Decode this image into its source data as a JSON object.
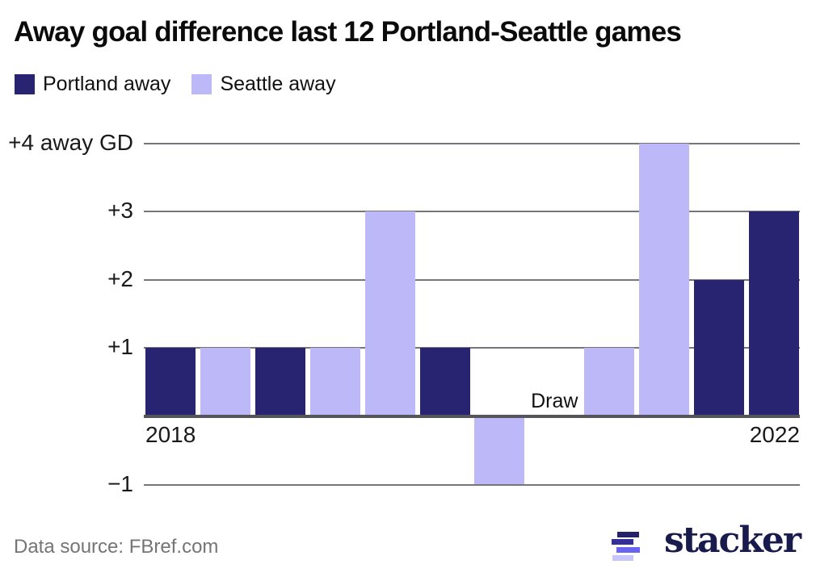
{
  "title": "Away goal difference last 12 Portland-Seattle games",
  "legend": [
    {
      "label": "Portland away",
      "color": "#282471"
    },
    {
      "label": "Seattle away",
      "color": "#bdb9f8"
    }
  ],
  "footer": {
    "source": "Data source: FBref.com",
    "brand": "stacker",
    "brand_icon_colors": [
      "#262168",
      "#353099",
      "#6a64f2",
      "#c8c5fc"
    ]
  },
  "chart_data": {
    "type": "bar",
    "title": "Away goal difference last 12 Portland-Seattle games",
    "ylabel": "away goal difference",
    "ylim": [
      -1,
      4
    ],
    "grid": true,
    "legend_position": "top-left",
    "y_ticks": [
      {
        "value": 4,
        "label": "+4 away GD"
      },
      {
        "value": 3,
        "label": "+3"
      },
      {
        "value": 2,
        "label": "+2"
      },
      {
        "value": 1,
        "label": "+1"
      },
      {
        "value": -1,
        "label": "−1"
      }
    ],
    "x_axis": {
      "left_label": "2018",
      "right_label": "2022"
    },
    "series_colors": {
      "Portland away": "#282471",
      "Seattle away": "#bdb9f8"
    },
    "annotations": [
      {
        "text": "Draw",
        "slot": 7
      }
    ],
    "games": [
      {
        "slot": 0,
        "team": "Portland away",
        "value": 1
      },
      {
        "slot": 1,
        "team": "Seattle away",
        "value": 1
      },
      {
        "slot": 2,
        "team": "Portland away",
        "value": 1
      },
      {
        "slot": 3,
        "team": "Seattle away",
        "value": 1
      },
      {
        "slot": 4,
        "team": "Seattle away",
        "value": 3
      },
      {
        "slot": 5,
        "team": "Portland away",
        "value": 1
      },
      {
        "slot": 6,
        "team": "Seattle away",
        "value": -1
      },
      {
        "slot": 7,
        "team": "Draw",
        "value": 0
      },
      {
        "slot": 8,
        "team": "Seattle away",
        "value": 1
      },
      {
        "slot": 9,
        "team": "Seattle away",
        "value": 4
      },
      {
        "slot": 10,
        "team": "Portland away",
        "value": 2
      },
      {
        "slot": 11,
        "team": "Portland away",
        "value": 3
      }
    ]
  }
}
